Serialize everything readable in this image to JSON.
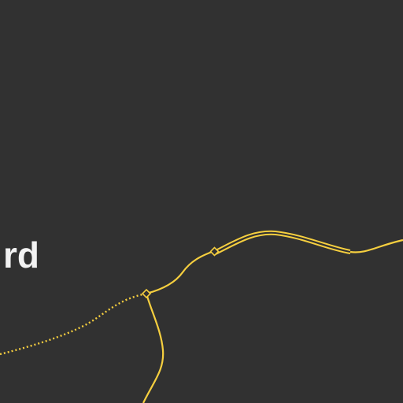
{
  "map": {
    "background_color": "#313131",
    "route_color": "#f6cf3f",
    "label_color": "#f2f2f2",
    "place_label": "rd"
  }
}
